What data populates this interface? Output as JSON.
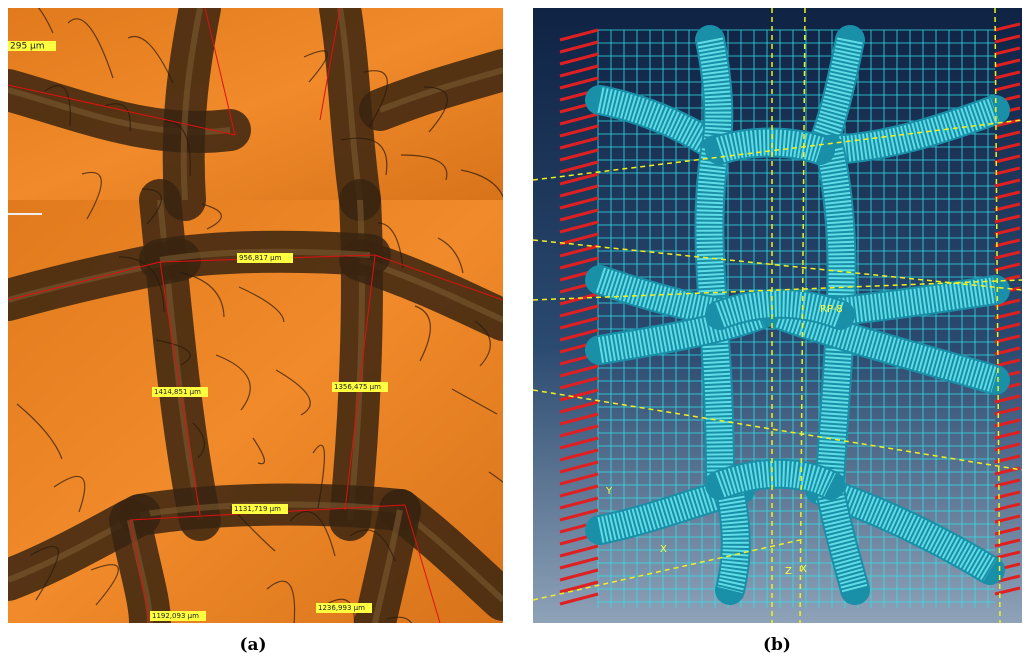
{
  "panels": [
    {
      "label": "(a)",
      "measurements": [
        "295 µm",
        "956,817 µm",
        "1414,851 µm",
        "1356,475 µm",
        "1131,719 µm",
        "1192,093 µm",
        "1236,993 µm"
      ]
    },
    {
      "label": "(b)",
      "annotations": [
        "RP-8",
        "X",
        "Y",
        "X",
        "Z"
      ]
    }
  ]
}
